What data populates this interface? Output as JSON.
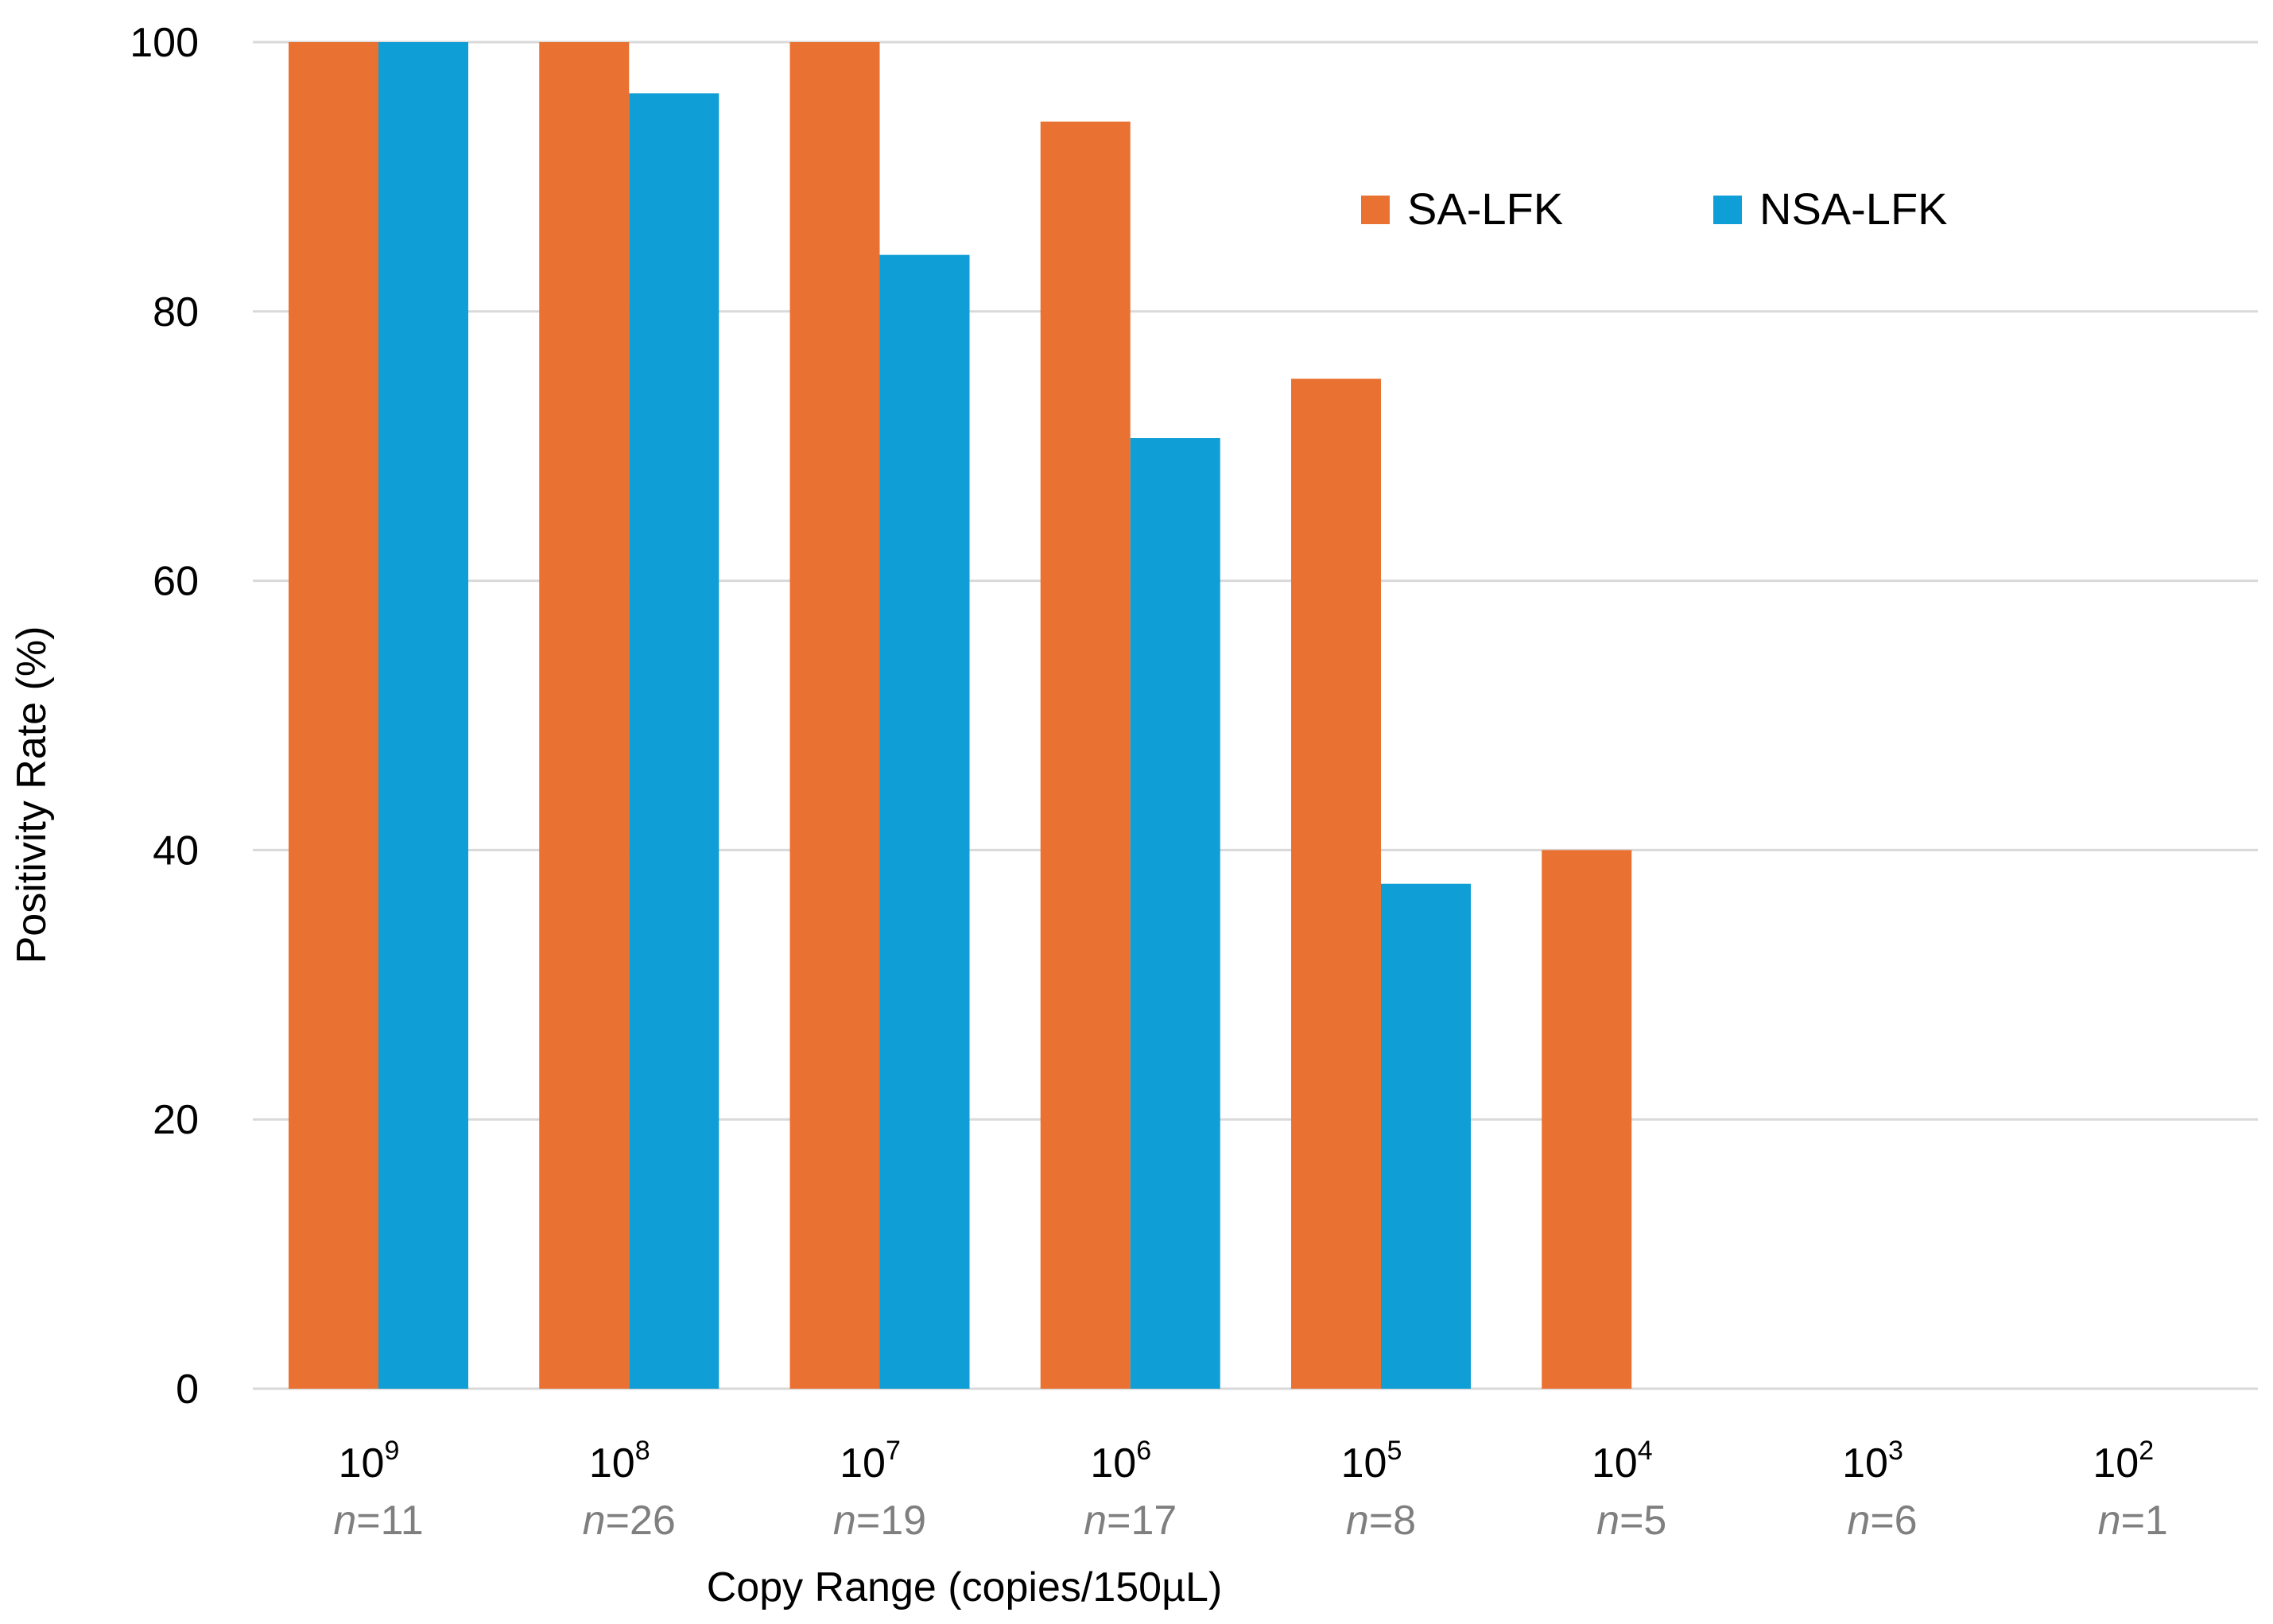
{
  "chart_data": {
    "type": "bar",
    "title": "",
    "xlabel": "Copy Range (copies/150µL)",
    "ylabel": "Positivity Rate (%)",
    "ylim": [
      0,
      100
    ],
    "yticks": [
      0,
      20,
      40,
      60,
      80,
      100
    ],
    "grid": true,
    "legend_position": "top-right",
    "categories": [
      {
        "base": "10",
        "exp": "9",
        "n_prefix": "n",
        "n_value": "=11"
      },
      {
        "base": "10",
        "exp": "8",
        "n_prefix": "n",
        "n_value": "=26"
      },
      {
        "base": "10",
        "exp": "7",
        "n_prefix": "n",
        "n_value": "=19"
      },
      {
        "base": "10",
        "exp": "6",
        "n_prefix": "n",
        "n_value": "=17"
      },
      {
        "base": "10",
        "exp": "5",
        "n_prefix": "n",
        "n_value": "=8"
      },
      {
        "base": "10",
        "exp": "4",
        "n_prefix": "n",
        "n_value": "=5"
      },
      {
        "base": "10",
        "exp": "3",
        "n_prefix": "n",
        "n_value": "=6"
      },
      {
        "base": "10",
        "exp": "2",
        "n_prefix": "n",
        "n_value": "=1"
      }
    ],
    "series": [
      {
        "name": "SA-LFK",
        "color": "#E97132",
        "values": [
          100,
          100,
          100,
          94.1,
          75,
          40,
          0,
          0
        ]
      },
      {
        "name": "NSA-LFK",
        "color": "#0F9ED5",
        "values": [
          100,
          96.2,
          84.2,
          70.6,
          37.5,
          0,
          0,
          0
        ]
      }
    ],
    "colors": {
      "grid": "#d9d9d9",
      "axis_text": "#000000",
      "n_text": "#7f7f7f"
    }
  }
}
